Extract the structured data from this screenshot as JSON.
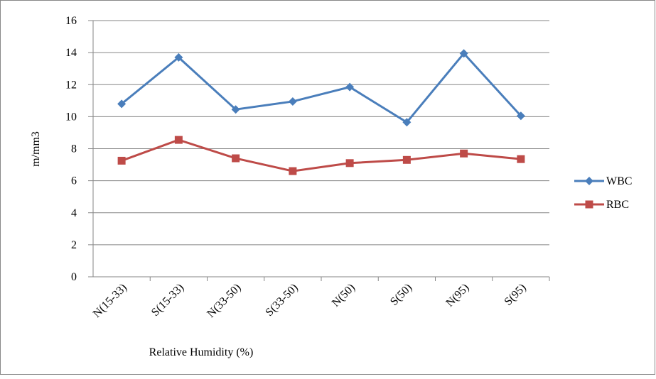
{
  "chart_data": {
    "type": "line",
    "x_label": "Relative Humidity (%)",
    "y_label": "m/mm3",
    "categories": [
      "N(15-33)",
      "S(15-33)",
      "N(33-50)",
      "S(33-50)",
      "N(50)",
      "S(50)",
      "N(95)",
      "S(95)"
    ],
    "series": [
      {
        "name": "WBC",
        "color": "#4a7ebb",
        "marker": "diamond",
        "values": [
          10.8,
          13.7,
          10.45,
          10.95,
          11.85,
          9.65,
          13.95,
          10.05
        ]
      },
      {
        "name": "RBC",
        "color": "#be4b48",
        "marker": "square",
        "values": [
          7.25,
          8.55,
          7.4,
          6.6,
          7.1,
          7.3,
          7.7,
          7.35
        ]
      }
    ],
    "ylim": [
      0,
      16
    ],
    "yticks": [
      0,
      2,
      4,
      6,
      8,
      10,
      12,
      14,
      16
    ],
    "grid": true,
    "legend": "right"
  }
}
